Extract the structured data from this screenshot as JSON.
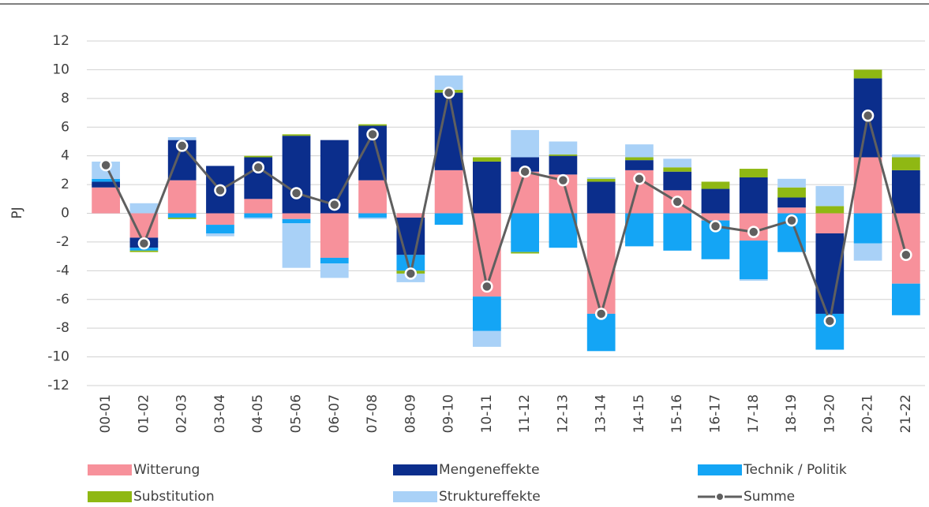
{
  "chart_data": {
    "type": "stacked_bar_line",
    "y_label": "PJ",
    "categories": [
      "00-01",
      "01-02",
      "02-03",
      "03-04",
      "04-05",
      "05-06",
      "06-07",
      "07-08",
      "08-09",
      "09-10",
      "10-11",
      "11-12",
      "12-13",
      "13-14",
      "14-15",
      "15-16",
      "16-17",
      "17-18",
      "18-19",
      "19-20",
      "20-21",
      "21-22"
    ],
    "series": [
      {
        "name": "Witterung",
        "color": "#f7919b",
        "kind": "bar",
        "values": [
          1.8,
          -1.7,
          2.3,
          -0.8,
          1.0,
          -0.4,
          -3.1,
          2.3,
          -0.3,
          3.0,
          -5.8,
          2.9,
          2.7,
          -7.0,
          3.0,
          1.6,
          -0.5,
          -1.9,
          0.4,
          -1.4,
          3.9,
          -4.9
        ]
      },
      {
        "name": "Mengeneffekte",
        "color": "#0b2e8c",
        "kind": "bar",
        "values": [
          0.4,
          -0.7,
          2.8,
          3.3,
          2.9,
          5.4,
          5.1,
          3.8,
          -2.6,
          5.4,
          3.6,
          1.0,
          1.3,
          2.2,
          0.7,
          1.3,
          1.7,
          2.5,
          0.7,
          -5.6,
          5.5,
          3.0
        ]
      },
      {
        "name": "Technik / Politik",
        "color": "#14a5f5",
        "kind": "bar",
        "values": [
          0.2,
          -0.2,
          -0.3,
          -0.6,
          -0.3,
          -0.3,
          -0.4,
          -0.3,
          -1.1,
          -0.8,
          -2.4,
          -2.7,
          -2.4,
          -2.6,
          -2.3,
          -2.6,
          -2.7,
          -2.7,
          -2.7,
          -2.5,
          -2.1,
          -2.2
        ]
      },
      {
        "name": "Substitution",
        "color": "#8fb813",
        "kind": "bar",
        "values": [
          0.0,
          -0.1,
          -0.1,
          0.0,
          0.1,
          0.1,
          0.0,
          0.1,
          -0.2,
          0.2,
          0.3,
          -0.1,
          0.1,
          0.2,
          0.2,
          0.3,
          0.5,
          0.6,
          0.7,
          0.5,
          0.6,
          0.9
        ]
      },
      {
        "name": "Struktureffekte",
        "color": "#a9d1f7",
        "kind": "bar",
        "values": [
          1.2,
          0.7,
          0.2,
          -0.2,
          -0.1,
          -3.1,
          -1.0,
          -0.1,
          -0.6,
          1.0,
          -1.1,
          1.9,
          0.9,
          0.1,
          0.9,
          0.6,
          0.0,
          -0.1,
          0.6,
          1.4,
          -1.2,
          0.2
        ]
      },
      {
        "name": "Summe",
        "color": "#5f5f5f",
        "kind": "line",
        "values": [
          3.35,
          -2.1,
          4.7,
          1.6,
          3.2,
          1.4,
          0.6,
          5.5,
          -4.2,
          8.4,
          -5.1,
          2.9,
          2.3,
          -7.0,
          2.4,
          0.8,
          -0.9,
          -1.3,
          -0.5,
          -7.5,
          6.8,
          -2.9
        ]
      }
    ],
    "ylim": [
      -12,
      12
    ],
    "yticks": [
      -12,
      -10,
      -8,
      -6,
      -4,
      -2,
      0,
      2,
      4,
      6,
      8,
      10,
      12
    ],
    "grid": true
  }
}
